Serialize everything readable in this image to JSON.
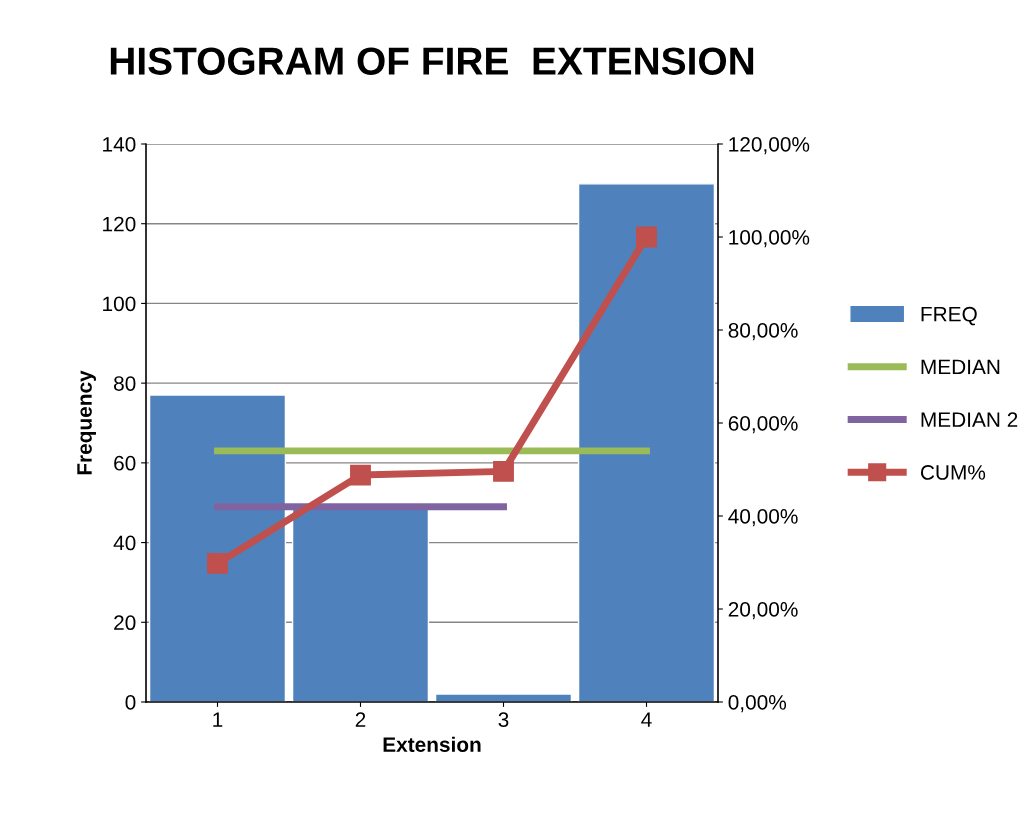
{
  "chart_data": {
    "type": "bar",
    "title": "HISTOGRAM OF FIRE  EXTENSION",
    "xlabel": "Extension",
    "ylabel": "Frequency",
    "categories": [
      "1",
      "2",
      "3",
      "4"
    ],
    "series": [
      {
        "name": "FREQ",
        "color": "#4f81bd",
        "values": [
          77,
          49,
          2,
          130
        ]
      },
      {
        "name": "MEDIAN",
        "type": "line",
        "color": "#9bbb59",
        "marker": "none",
        "values": [
          63,
          63,
          63,
          63
        ]
      },
      {
        "name": "MEDIAN 2",
        "type": "line",
        "color": "#8064a2",
        "marker": "none",
        "values": [
          49,
          49,
          49,
          null
        ]
      },
      {
        "name": "CUM%",
        "type": "line",
        "axis": "y2",
        "color": "#c0504d",
        "marker": "square",
        "values": [
          29.8,
          48.8,
          49.6,
          100
        ]
      }
    ],
    "ylim": [
      0,
      140
    ],
    "yticks": [
      0,
      20,
      40,
      60,
      80,
      100,
      120,
      140
    ],
    "y2lim": [
      0,
      120
    ],
    "y2ticks": [
      {
        "value": 0,
        "label": "0,00%"
      },
      {
        "value": 20,
        "label": "20,00%"
      },
      {
        "value": 40,
        "label": "40,00%"
      },
      {
        "value": 60,
        "label": "60,00%"
      },
      {
        "value": 80,
        "label": "80,00%"
      },
      {
        "value": 100,
        "label": "100,00%"
      },
      {
        "value": 120,
        "label": "120,00%"
      }
    ],
    "grid": "y",
    "legend": "right"
  }
}
